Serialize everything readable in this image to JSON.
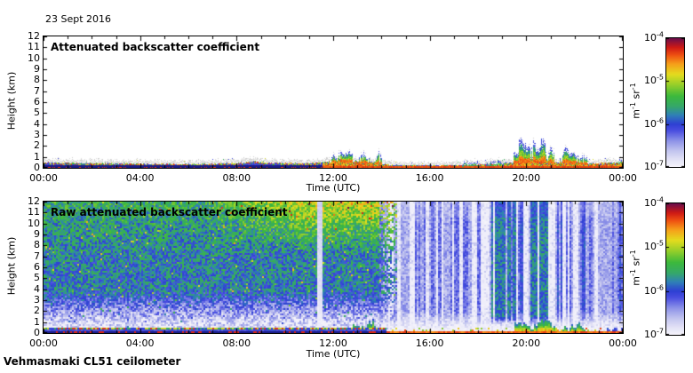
{
  "figure": {
    "date_label": "23 Sept 2016",
    "footer_label": "Vehmasmaki CL51 ceilometer",
    "background_color": "#ffffff",
    "axis_color": "#000000"
  },
  "colormap": {
    "stops": [
      [
        0.0,
        "#f4f3fb"
      ],
      [
        0.05,
        "#e4e3f6"
      ],
      [
        0.12,
        "#c3c5ef"
      ],
      [
        0.2,
        "#8e93e8"
      ],
      [
        0.28,
        "#4a4fe0"
      ],
      [
        0.33,
        "#2e3fd4"
      ],
      [
        0.4,
        "#2f7fb8"
      ],
      [
        0.47,
        "#35a869"
      ],
      [
        0.55,
        "#3cb93c"
      ],
      [
        0.64,
        "#97cf2a"
      ],
      [
        0.72,
        "#e4dc1e"
      ],
      [
        0.8,
        "#f6a01a"
      ],
      [
        0.87,
        "#ef5212"
      ],
      [
        0.93,
        "#cf1a14"
      ],
      [
        1.0,
        "#6e0e4a"
      ]
    ],
    "ground_strip_color": "#1c1c87",
    "speckle_gray": "#cfcfcf"
  },
  "chart_data": [
    {
      "id": "attenuated_backscatter",
      "type": "heatmap",
      "title": "Attenuated backscatter coefficient",
      "xlabel": "Time (UTC)",
      "ylabel": "Height (km)",
      "x_tick_labels": [
        "00:00",
        "04:00",
        "08:00",
        "12:00",
        "16:00",
        "20:00",
        "00:00"
      ],
      "x_tick_hours": [
        0,
        4,
        8,
        12,
        16,
        20,
        24
      ],
      "xlim_hours": [
        0,
        24
      ],
      "y_tick_labels": [
        "0",
        "1",
        "2",
        "3",
        "4",
        "5",
        "6",
        "7",
        "8",
        "9",
        "10",
        "11",
        "12"
      ],
      "ylim_km": [
        0,
        12
      ],
      "grid": false,
      "colorbar": {
        "scale": "log",
        "range": [
          "1e-7",
          "1e-4"
        ],
        "ticks": [
          {
            "base": "10",
            "exp": "-4"
          },
          {
            "base": "10",
            "exp": "-5"
          },
          {
            "base": "10",
            "exp": "-6"
          },
          {
            "base": "10",
            "exp": "-7"
          }
        ],
        "unit_parts": [
          {
            "text": "m",
            "sup": "-1"
          },
          {
            "text": " sr",
            "sup": "-1"
          }
        ]
      },
      "features": {
        "surface_aerosol_layer": {
          "description": "Shallow aerosol layer 0-0.5 km all day: blue bulk with multicoloured speckled top edge and grey speckle cap; turns orange-red and thin after ~11:30",
          "top_km_by_hour": [
            [
              0,
              0.45
            ],
            [
              1,
              0.42
            ],
            [
              2,
              0.38
            ],
            [
              3,
              0.36
            ],
            [
              4,
              0.33
            ],
            [
              5,
              0.31
            ],
            [
              6,
              0.3
            ],
            [
              7,
              0.32
            ],
            [
              8,
              0.4
            ],
            [
              8.7,
              0.52
            ],
            [
              9.3,
              0.42
            ],
            [
              10,
              0.36
            ],
            [
              11,
              0.4
            ],
            [
              11.7,
              0.5
            ],
            [
              12.5,
              0.55
            ],
            [
              13.5,
              0.45
            ],
            [
              14.5,
              0.22
            ],
            [
              16,
              0.18
            ],
            [
              17.5,
              0.2
            ],
            [
              18.5,
              0.26
            ],
            [
              19.3,
              0.4
            ],
            [
              20,
              0.5
            ],
            [
              21,
              0.45
            ],
            [
              22,
              0.4
            ],
            [
              23,
              0.36
            ],
            [
              24,
              0.45
            ]
          ],
          "warm_after_hour": 11.55
        },
        "cloud_events": [
          {
            "start_hour": 11.9,
            "end_hour": 14.0,
            "max_top_km": 2.0,
            "strength": "moderate"
          },
          {
            "start_hour": 17.3,
            "end_hour": 19.25,
            "max_top_km": 1.0,
            "strength": "weak"
          },
          {
            "start_hour": 19.45,
            "end_hour": 21.15,
            "max_top_km": 3.2,
            "strength": "strong"
          },
          {
            "start_hour": 21.35,
            "end_hour": 22.5,
            "max_top_km": 2.4,
            "strength": "strong"
          },
          {
            "start_hour": 23.6,
            "end_hour": 24.0,
            "max_top_km": 1.3,
            "strength": "weak"
          }
        ]
      }
    },
    {
      "id": "raw_attenuated_backscatter",
      "type": "heatmap",
      "title": "Raw attenuated backscatter coefficient",
      "xlabel": "Time (UTC)",
      "ylabel": "Height (km)",
      "x_tick_labels": [
        "00:00",
        "04:00",
        "08:00",
        "12:00",
        "16:00",
        "20:00",
        "00:00"
      ],
      "x_tick_hours": [
        0,
        4,
        8,
        12,
        16,
        20,
        24
      ],
      "xlim_hours": [
        0,
        24
      ],
      "y_tick_labels": [
        "0",
        "1",
        "2",
        "3",
        "4",
        "5",
        "6",
        "7",
        "8",
        "9",
        "10",
        "11",
        "12"
      ],
      "ylim_km": [
        0,
        12
      ],
      "grid": false,
      "colorbar": {
        "scale": "log",
        "range": [
          "1e-7",
          "1e-4"
        ],
        "ticks": [
          {
            "base": "10",
            "exp": "-4"
          },
          {
            "base": "10",
            "exp": "-5"
          },
          {
            "base": "10",
            "exp": "-6"
          },
          {
            "base": "10",
            "exp": "-7"
          }
        ],
        "unit_parts": [
          {
            "text": "m",
            "sup": "-1"
          },
          {
            "text": " sr",
            "sup": "-1"
          }
        ]
      },
      "features": {
        "noise_description": "Full-depth speckle noise: green aloft with orange growing toward 08:00-14:00 at 8-12 km; pale vertical gap stripes with sparse blue after ~14:00; green columns near 18:30-19:30 and 20:10-21:00; whitish band below ~1 km",
        "transition_hour": 14.2,
        "warm_top_ramp_hours": [
          6.5,
          11
        ],
        "green_column_periods_hours": [
          [
            18.5,
            19.6
          ],
          [
            20.1,
            21.0
          ]
        ],
        "white_stripe_hours": [
          11.4
        ],
        "surface_aerosol_layer": {
          "description": "Blue surface layer to ~0.4 km with multicoloured top edge before 14:00, thin red ground layer afterwards",
          "top_km": 0.42
        },
        "cloud_events": [
          {
            "start_hour": 11.9,
            "end_hour": 13.9,
            "max_top_km": 1.6,
            "strength": "moderate"
          },
          {
            "start_hour": 19.45,
            "end_hour": 21.15,
            "max_top_km": 1.6,
            "strength": "strong"
          },
          {
            "start_hour": 21.35,
            "end_hour": 22.45,
            "max_top_km": 1.1,
            "strength": "moderate"
          },
          {
            "start_hour": 23.3,
            "end_hour": 24.0,
            "max_top_km": 0.9,
            "strength": "weak"
          }
        ]
      }
    }
  ]
}
